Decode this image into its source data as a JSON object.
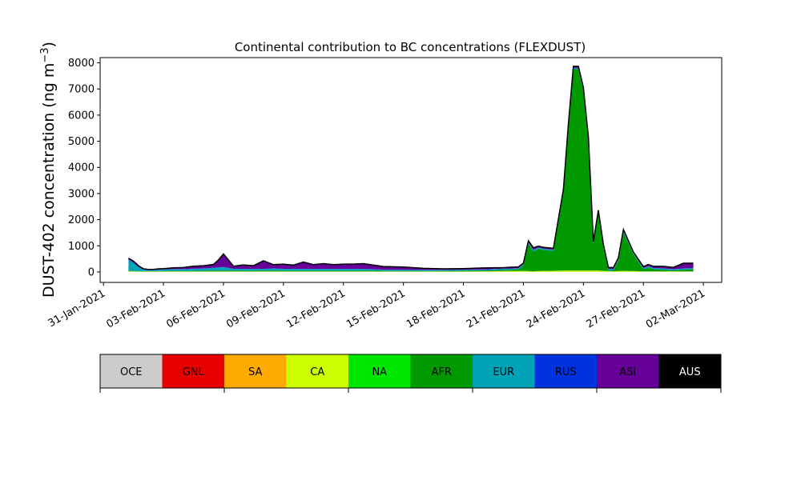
{
  "chart_data": {
    "type": "area",
    "stacked": true,
    "title": "Continental contribution to BC concentrations (FLEXDUST)",
    "ylabel": "DUST-402 concentration (ng m",
    "ylabel_sup": "−3",
    "ylabel_close": ")",
    "ylim": [
      -400,
      8200
    ],
    "yticks": [
      0,
      1000,
      2000,
      3000,
      4000,
      5000,
      6000,
      7000,
      8000
    ],
    "xlim": [
      "2021-01-30T20:00",
      "2021-03-02T22:00"
    ],
    "xticks": [
      "31-Jan-2021",
      "03-Feb-2021",
      "06-Feb-2021",
      "09-Feb-2021",
      "12-Feb-2021",
      "15-Feb-2021",
      "18-Feb-2021",
      "21-Feb-2021",
      "24-Feb-2021",
      "27-Feb-2021",
      "02-Mar-2021"
    ],
    "xtick_dates": [
      "2021-01-31",
      "2021-02-03",
      "2021-02-06",
      "2021-02-09",
      "2021-02-12",
      "2021-02-15",
      "2021-02-18",
      "2021-02-21",
      "2021-02-24",
      "2021-02-27",
      "2021-03-02"
    ],
    "x": [
      "2021-02-01T06:00",
      "2021-02-01T12:00",
      "2021-02-01T18:00",
      "2021-02-02T00:00",
      "2021-02-02T06:00",
      "2021-02-02T12:00",
      "2021-02-02T18:00",
      "2021-02-03T00:00",
      "2021-02-03T12:00",
      "2021-02-04T00:00",
      "2021-02-04T12:00",
      "2021-02-05T00:00",
      "2021-02-05T12:00",
      "2021-02-05T18:00",
      "2021-02-06T00:00",
      "2021-02-06T06:00",
      "2021-02-06T12:00",
      "2021-02-07T00:00",
      "2021-02-07T12:00",
      "2021-02-08T00:00",
      "2021-02-08T12:00",
      "2021-02-09T00:00",
      "2021-02-09T12:00",
      "2021-02-10T00:00",
      "2021-02-10T12:00",
      "2021-02-11T00:00",
      "2021-02-11T12:00",
      "2021-02-12T00:00",
      "2021-02-12T12:00",
      "2021-02-13T00:00",
      "2021-02-14T00:00",
      "2021-02-15T00:00",
      "2021-02-16T00:00",
      "2021-02-17T00:00",
      "2021-02-18T00:00",
      "2021-02-19T00:00",
      "2021-02-20T00:00",
      "2021-02-20T18:00",
      "2021-02-21T00:00",
      "2021-02-21T06:00",
      "2021-02-21T12:00",
      "2021-02-21T18:00",
      "2021-02-22T00:00",
      "2021-02-22T12:00",
      "2021-02-23T00:00",
      "2021-02-23T06:00",
      "2021-02-23T12:00",
      "2021-02-23T18:00",
      "2021-02-24T00:00",
      "2021-02-24T06:00",
      "2021-02-24T12:00",
      "2021-02-24T18:00",
      "2021-02-25T00:00",
      "2021-02-25T06:00",
      "2021-02-25T12:00",
      "2021-02-25T18:00",
      "2021-02-26T00:00",
      "2021-02-26T12:00",
      "2021-02-27T00:00",
      "2021-02-27T06:00",
      "2021-02-27T12:00",
      "2021-02-28T00:00",
      "2021-02-28T12:00",
      "2021-03-01T00:00",
      "2021-03-01T12:00"
    ],
    "series": [
      {
        "name": "OCE",
        "color": "#cccccc",
        "values": [
          10,
          10,
          5,
          5,
          5,
          5,
          5,
          5,
          5,
          5,
          5,
          5,
          5,
          5,
          5,
          5,
          5,
          5,
          5,
          5,
          5,
          5,
          5,
          5,
          5,
          5,
          5,
          5,
          5,
          5,
          5,
          5,
          5,
          5,
          5,
          5,
          5,
          5,
          5,
          5,
          5,
          5,
          5,
          5,
          5,
          5,
          5,
          5,
          5,
          5,
          5,
          5,
          5,
          5,
          5,
          5,
          5,
          5,
          5,
          5,
          5,
          5,
          5,
          5,
          5
        ]
      },
      {
        "name": "GNL",
        "color": "#e60000",
        "values": [
          0,
          0,
          0,
          0,
          0,
          0,
          0,
          0,
          0,
          0,
          0,
          0,
          0,
          0,
          0,
          0,
          0,
          0,
          0,
          0,
          0,
          0,
          0,
          0,
          0,
          0,
          0,
          0,
          0,
          0,
          0,
          0,
          0,
          0,
          0,
          0,
          0,
          0,
          0,
          0,
          0,
          0,
          0,
          0,
          0,
          0,
          0,
          0,
          0,
          0,
          0,
          0,
          0,
          0,
          0,
          0,
          0,
          0,
          0,
          0,
          0,
          0,
          0,
          0,
          0
        ]
      },
      {
        "name": "SA",
        "color": "#ffaa00",
        "values": [
          5,
          5,
          5,
          5,
          5,
          5,
          5,
          5,
          5,
          5,
          5,
          5,
          5,
          5,
          5,
          5,
          5,
          5,
          5,
          5,
          5,
          5,
          5,
          5,
          5,
          5,
          5,
          5,
          5,
          5,
          5,
          5,
          5,
          5,
          5,
          5,
          5,
          5,
          5,
          5,
          5,
          5,
          5,
          5,
          5,
          5,
          5,
          5,
          5,
          5,
          5,
          5,
          5,
          5,
          5,
          5,
          5,
          5,
          5,
          5,
          5,
          5,
          5,
          5,
          5
        ]
      },
      {
        "name": "CA",
        "color": "#ccff00",
        "values": [
          10,
          10,
          5,
          5,
          5,
          5,
          5,
          5,
          5,
          5,
          5,
          5,
          5,
          5,
          5,
          5,
          5,
          5,
          5,
          5,
          5,
          5,
          5,
          5,
          5,
          5,
          5,
          5,
          5,
          5,
          5,
          5,
          5,
          5,
          5,
          10,
          20,
          30,
          30,
          20,
          10,
          20,
          30,
          30,
          40,
          40,
          40,
          40,
          40,
          40,
          40,
          40,
          30,
          20,
          10,
          20,
          30,
          20,
          10,
          10,
          10,
          10,
          10,
          10,
          10
        ]
      },
      {
        "name": "NA",
        "color": "#00e600",
        "values": [
          10,
          10,
          10,
          5,
          5,
          5,
          5,
          5,
          5,
          5,
          5,
          5,
          5,
          5,
          5,
          5,
          5,
          5,
          5,
          5,
          5,
          5,
          5,
          5,
          5,
          5,
          5,
          5,
          5,
          5,
          5,
          5,
          5,
          5,
          5,
          5,
          5,
          5,
          5,
          5,
          5,
          5,
          5,
          5,
          5,
          5,
          5,
          5,
          5,
          5,
          5,
          5,
          5,
          5,
          5,
          5,
          5,
          5,
          5,
          5,
          5,
          5,
          5,
          5,
          5
        ]
      },
      {
        "name": "AFR",
        "color": "#009900",
        "values": [
          10,
          10,
          10,
          10,
          10,
          10,
          10,
          20,
          20,
          20,
          20,
          30,
          30,
          30,
          30,
          30,
          30,
          30,
          30,
          30,
          30,
          30,
          30,
          30,
          30,
          30,
          30,
          30,
          30,
          30,
          20,
          20,
          20,
          20,
          30,
          30,
          40,
          50,
          200,
          1050,
          750,
          850,
          800,
          760,
          3000,
          5500,
          7700,
          7700,
          6900,
          5000,
          1000,
          2200,
          900,
          30,
          30,
          400,
          1450,
          650,
          80,
          150,
          80,
          60,
          30,
          60,
          80
        ]
      },
      {
        "name": "EUR",
        "color": "#00a3b8",
        "values": [
          420,
          300,
          150,
          60,
          40,
          40,
          50,
          50,
          60,
          60,
          80,
          80,
          100,
          120,
          130,
          100,
          60,
          60,
          60,
          60,
          80,
          60,
          60,
          60,
          60,
          60,
          60,
          60,
          60,
          60,
          40,
          40,
          30,
          30,
          30,
          30,
          40,
          40,
          40,
          40,
          60,
          40,
          40,
          40,
          40,
          40,
          40,
          40,
          40,
          40,
          40,
          40,
          40,
          40,
          40,
          40,
          60,
          30,
          40,
          40,
          40,
          40,
          40,
          40,
          40
        ]
      },
      {
        "name": "RUS",
        "color": "#0033dd",
        "values": [
          20,
          20,
          15,
          10,
          10,
          10,
          10,
          10,
          10,
          10,
          10,
          10,
          10,
          10,
          10,
          10,
          10,
          10,
          10,
          10,
          10,
          10,
          10,
          10,
          10,
          10,
          10,
          10,
          10,
          10,
          10,
          10,
          10,
          10,
          10,
          10,
          10,
          10,
          10,
          10,
          10,
          10,
          10,
          10,
          10,
          10,
          10,
          10,
          10,
          10,
          10,
          10,
          10,
          10,
          10,
          10,
          10,
          10,
          10,
          10,
          10,
          10,
          10,
          10,
          10
        ]
      },
      {
        "name": "ASI",
        "color": "#660099",
        "values": [
          40,
          50,
          40,
          20,
          15,
          20,
          30,
          30,
          50,
          60,
          90,
          100,
          130,
          280,
          500,
          300,
          100,
          150,
          120,
          310,
          140,
          180,
          140,
          260,
          160,
          200,
          160,
          180,
          180,
          200,
          120,
          100,
          60,
          40,
          40,
          60,
          40,
          50,
          40,
          60,
          80,
          50,
          50,
          50,
          60,
          60,
          60,
          60,
          60,
          60,
          60,
          60,
          60,
          60,
          60,
          60,
          60,
          40,
          50,
          60,
          60,
          80,
          70,
          200,
          180
        ]
      },
      {
        "name": "AUS",
        "color": "#000000",
        "values": [
          0,
          0,
          0,
          0,
          0,
          0,
          0,
          0,
          0,
          0,
          0,
          0,
          0,
          0,
          0,
          0,
          0,
          0,
          0,
          0,
          0,
          0,
          0,
          0,
          0,
          0,
          0,
          0,
          0,
          0,
          0,
          0,
          0,
          0,
          0,
          0,
          0,
          0,
          0,
          0,
          0,
          0,
          0,
          0,
          0,
          0,
          0,
          0,
          0,
          0,
          0,
          0,
          0,
          0,
          0,
          0,
          0,
          0,
          0,
          0,
          0,
          0,
          0,
          0,
          0
        ]
      }
    ],
    "legend": {
      "placement": "bottom",
      "text_colors": [
        "#000000",
        "#000000",
        "#000000",
        "#000000",
        "#000000",
        "#000000",
        "#000000",
        "#000000",
        "#000000",
        "#ffffff"
      ]
    },
    "total_line_color": "#000000",
    "grid": false
  }
}
